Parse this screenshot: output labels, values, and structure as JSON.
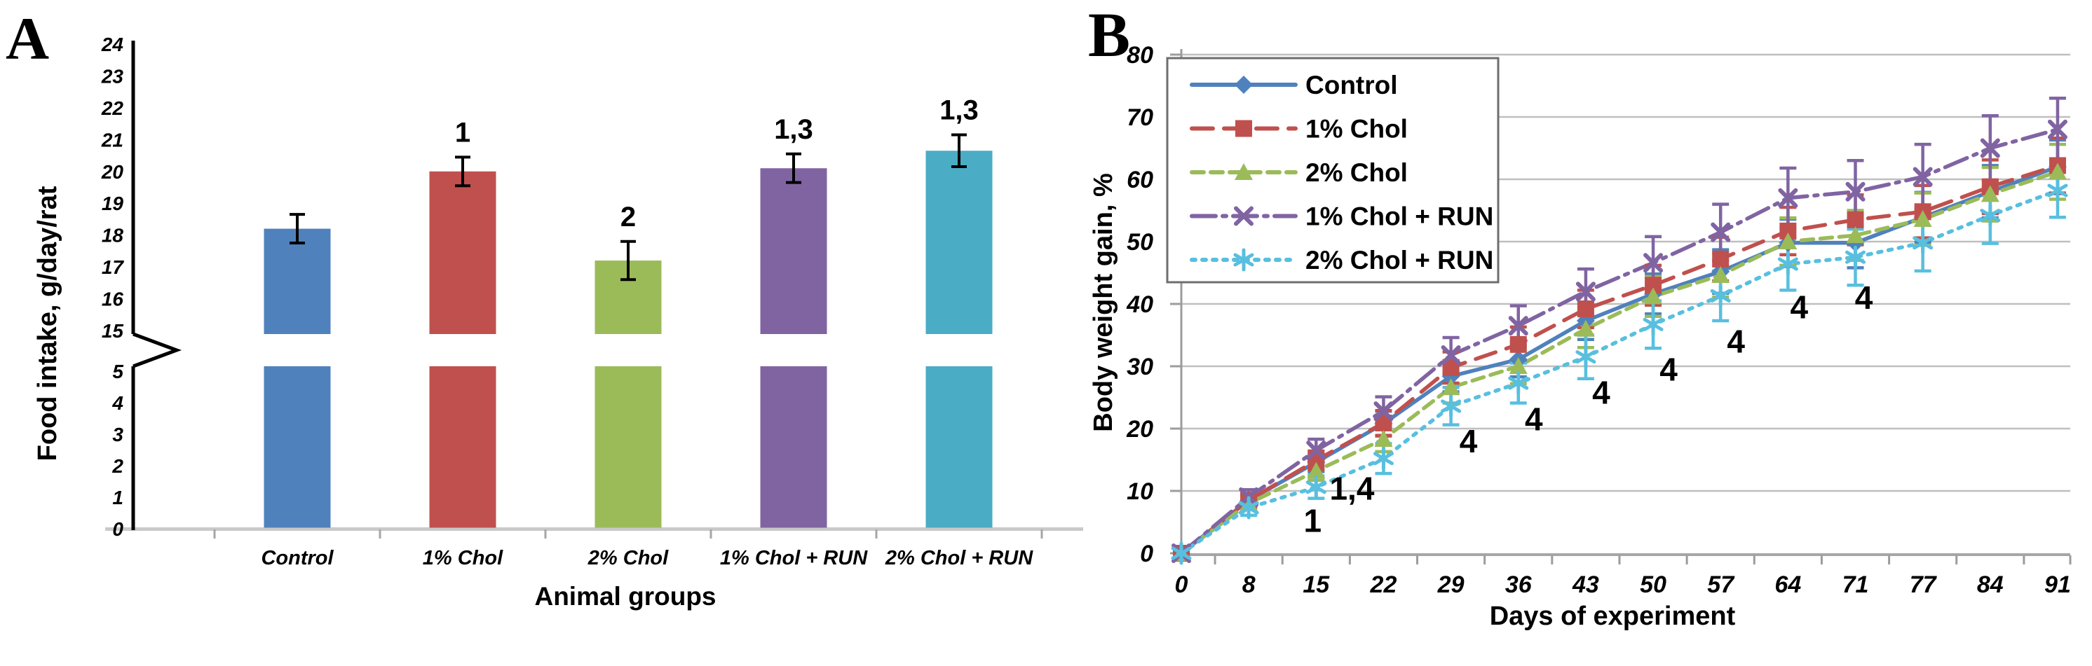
{
  "panel_a": {
    "letter": "A",
    "y_axis_title": "Food intake, g/day/rat",
    "x_axis_title": "Animal groups"
  },
  "panel_b": {
    "letter": "B",
    "y_axis_title": "Body weight gain, %",
    "x_axis_title": "Days of experiment"
  },
  "chart_data": [
    {
      "type": "bar",
      "title": "Food intake by animal group",
      "xlabel": "Animal groups",
      "ylabel": "Food intake, g/day/rat",
      "categories": [
        "Control",
        "1% Chol",
        "2% Chol",
        "1% Chol + RUN",
        "2% Chol + RUN"
      ],
      "values": [
        18.2,
        20.0,
        17.2,
        20.1,
        20.65
      ],
      "errors": [
        0.45,
        0.45,
        0.6,
        0.45,
        0.5
      ],
      "significance_labels": [
        "",
        "1",
        "2",
        "1,3",
        "1,3"
      ],
      "bar_colors": [
        "#4F81BD",
        "#C0504D",
        "#9BBB59",
        "#8064A2",
        "#4BACC6"
      ],
      "y_axis_break": {
        "lower_range": [
          0,
          5
        ],
        "upper_range": [
          15,
          24
        ]
      },
      "y_ticks_lower": [
        0,
        1,
        2,
        3,
        4,
        5
      ],
      "y_ticks_upper": [
        15,
        16,
        17,
        18,
        19,
        20,
        21,
        22,
        23,
        24
      ],
      "grid": false
    },
    {
      "type": "line",
      "title": "Body weight gain over days of experiment",
      "xlabel": "Days of experiment",
      "ylabel": "Body weight gain, %",
      "x": [
        0,
        8,
        15,
        22,
        29,
        36,
        43,
        50,
        57,
        64,
        71,
        77,
        84,
        91
      ],
      "ylim": [
        0,
        80
      ],
      "y_ticks": [
        0,
        10,
        20,
        30,
        40,
        50,
        60,
        70,
        80
      ],
      "grid": true,
      "legend_position": "top-left",
      "series": [
        {
          "name": "Control",
          "color": "#4F81BD",
          "dash": "",
          "marker": "diamond",
          "values": [
            0,
            8.5,
            14.6,
            20.8,
            28.4,
            31.1,
            37.3,
            41.6,
            45.2,
            49.8,
            49.8,
            53.9,
            58.0,
            62.0
          ],
          "errors": [
            0,
            1.0,
            1.5,
            2.0,
            2.5,
            2.8,
            3.0,
            3.2,
            3.5,
            3.8,
            4.0,
            4.0,
            4.2,
            4.3
          ]
        },
        {
          "name": "1% Chol",
          "color": "#C0504D",
          "dash": "30 16",
          "marker": "square",
          "values": [
            0,
            8.5,
            14.9,
            20.9,
            29.8,
            33.5,
            39.2,
            43.0,
            47.2,
            51.7,
            53.5,
            54.8,
            58.8,
            62.2
          ],
          "errors": [
            0,
            1.0,
            1.5,
            2.0,
            2.5,
            2.8,
            3.0,
            3.2,
            3.5,
            3.8,
            4.0,
            4.2,
            4.3,
            4.4
          ]
        },
        {
          "name": "2% Chol",
          "color": "#9BBB59",
          "dash": "17 10",
          "marker": "triangle",
          "values": [
            0,
            8.0,
            13.2,
            18.3,
            26.6,
            30.0,
            36.0,
            41.2,
            44.6,
            50.0,
            51.0,
            53.6,
            57.6,
            61.2
          ],
          "errors": [
            0,
            1.0,
            1.5,
            2.0,
            2.5,
            2.8,
            3.0,
            3.2,
            3.5,
            3.8,
            4.0,
            4.2,
            4.3,
            4.4
          ]
        },
        {
          "name": "1% Chol + RUN",
          "color": "#8064A2",
          "dash": "34 10 5 10",
          "marker": "x",
          "values": [
            0,
            9.0,
            16.5,
            22.8,
            31.8,
            36.5,
            42.0,
            46.6,
            51.5,
            57.0,
            58.0,
            60.4,
            65.0,
            68.0
          ],
          "errors": [
            0,
            1.2,
            1.8,
            2.3,
            2.8,
            3.2,
            3.6,
            4.2,
            4.5,
            4.8,
            5.0,
            5.2,
            5.2,
            5.0
          ]
        },
        {
          "name": "2% Chol + RUN",
          "color": "#58BFDF",
          "dash": "5 10",
          "marker": "asterisk",
          "values": [
            0,
            7.3,
            10.6,
            15.2,
            23.6,
            27.3,
            31.5,
            36.7,
            41.3,
            46.4,
            47.5,
            49.8,
            54.2,
            58.2
          ],
          "errors": [
            0,
            1.2,
            1.8,
            2.4,
            3.0,
            3.2,
            3.5,
            3.8,
            4.0,
            4.2,
            4.5,
            4.5,
            4.5,
            4.3
          ]
        }
      ],
      "annotations": [
        {
          "x_index": 2,
          "label": "1",
          "y": 5.2,
          "dx": -5
        },
        {
          "x_index": 3,
          "label": "1,4",
          "y": 10.4,
          "dx": -45
        },
        {
          "x_index": 4,
          "label": "4",
          "y": 18.0,
          "dx": 25
        },
        {
          "x_index": 5,
          "label": "4",
          "y": 21.5,
          "dx": 22
        },
        {
          "x_index": 6,
          "label": "4",
          "y": 25.8,
          "dx": 22
        },
        {
          "x_index": 7,
          "label": "4",
          "y": 29.5,
          "dx": 22
        },
        {
          "x_index": 8,
          "label": "4",
          "y": 34.0,
          "dx": 22
        },
        {
          "x_index": 9,
          "label": "4",
          "y": 39.5,
          "dx": 16
        },
        {
          "x_index": 10,
          "label": "4",
          "y": 41.0,
          "dx": 12
        }
      ]
    }
  ]
}
